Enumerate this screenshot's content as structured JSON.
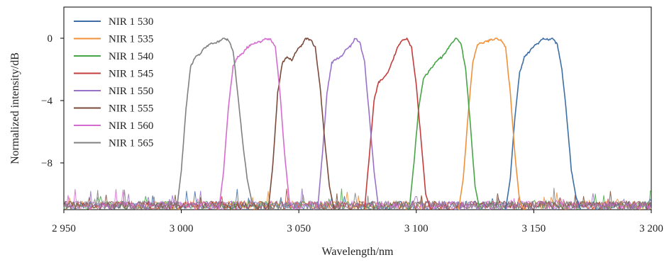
{
  "chart_data": {
    "type": "line",
    "title": "",
    "xlabel": "Wavelength/nm",
    "ylabel": "Normalized intensity/dB",
    "xlim": [
      2950,
      3200
    ],
    "ylim": [
      -11,
      2
    ],
    "x_ticks": [
      2950,
      3000,
      3050,
      3100,
      3150,
      3200
    ],
    "x_tick_labels": [
      "2 950",
      "3 000",
      "3 050",
      "3 100",
      "3 150",
      "3 200"
    ],
    "y_ticks": [
      0,
      -4,
      -8
    ],
    "y_tick_labels": [
      "0",
      "−4",
      "−8"
    ],
    "grid": false,
    "legend_position": "top-left",
    "noise_floor": -11,
    "series": [
      {
        "name": "NIR 1 530",
        "color": "#3d6fa6",
        "points": [
          [
            3138,
            -11
          ],
          [
            3140,
            -9
          ],
          [
            3142,
            -5
          ],
          [
            3144,
            -2.2
          ],
          [
            3146,
            -1.2
          ],
          [
            3148,
            -0.9
          ],
          [
            3150,
            -0.5
          ],
          [
            3152,
            -0.3
          ],
          [
            3154,
            0
          ],
          [
            3156,
            -0.1
          ],
          [
            3158,
            0
          ],
          [
            3160,
            -0.4
          ],
          [
            3162,
            -2
          ],
          [
            3164,
            -5
          ],
          [
            3166,
            -8.5
          ],
          [
            3168,
            -10.2
          ],
          [
            3170,
            -11
          ]
        ]
      },
      {
        "name": "NIR 1 535",
        "color": "#f0913a",
        "points": [
          [
            3118,
            -11
          ],
          [
            3120,
            -9
          ],
          [
            3122,
            -5
          ],
          [
            3124,
            -1.6
          ],
          [
            3126,
            -0.4
          ],
          [
            3128,
            -0.3
          ],
          [
            3130,
            -0.2
          ],
          [
            3132,
            -0.1
          ],
          [
            3134,
            0
          ],
          [
            3136,
            -0.1
          ],
          [
            3138,
            -0.6
          ],
          [
            3140,
            -3.5
          ],
          [
            3142,
            -7.5
          ],
          [
            3144,
            -10.5
          ],
          [
            3146,
            -11
          ]
        ]
      },
      {
        "name": "NIR 1 540",
        "color": "#47a447",
        "points": [
          [
            3097,
            -11
          ],
          [
            3099,
            -8
          ],
          [
            3101,
            -4.5
          ],
          [
            3103,
            -2.6
          ],
          [
            3105,
            -2.2
          ],
          [
            3107,
            -1.8
          ],
          [
            3109,
            -1.4
          ],
          [
            3111,
            -1.2
          ],
          [
            3113,
            -0.8
          ],
          [
            3115,
            -0.3
          ],
          [
            3117,
            0
          ],
          [
            3119,
            -0.3
          ],
          [
            3121,
            -2
          ],
          [
            3123,
            -5.5
          ],
          [
            3125,
            -9.5
          ],
          [
            3127,
            -11
          ]
        ]
      },
      {
        "name": "NIR 1 545",
        "color": "#c43c3c",
        "points": [
          [
            3078,
            -11
          ],
          [
            3080,
            -7.5
          ],
          [
            3082,
            -4
          ],
          [
            3084,
            -2.8
          ],
          [
            3086,
            -2.6
          ],
          [
            3088,
            -2.2
          ],
          [
            3090,
            -1.4
          ],
          [
            3092,
            -0.6
          ],
          [
            3094,
            -0.1
          ],
          [
            3096,
            0
          ],
          [
            3098,
            -0.6
          ],
          [
            3100,
            -3
          ],
          [
            3102,
            -6.5
          ],
          [
            3104,
            -10
          ],
          [
            3106,
            -11
          ]
        ]
      },
      {
        "name": "NIR 1 550",
        "color": "#9a71c9",
        "points": [
          [
            3058,
            -11
          ],
          [
            3060,
            -7.5
          ],
          [
            3062,
            -3.5
          ],
          [
            3064,
            -1.6
          ],
          [
            3066,
            -1.3
          ],
          [
            3068,
            -1.2
          ],
          [
            3070,
            -0.7
          ],
          [
            3072,
            -0.5
          ],
          [
            3074,
            0
          ],
          [
            3076,
            -0.3
          ],
          [
            3078,
            -1.5
          ],
          [
            3080,
            -5
          ],
          [
            3082,
            -8.5
          ],
          [
            3084,
            -11
          ]
        ]
      },
      {
        "name": "NIR 1 555",
        "color": "#7b4a3a",
        "points": [
          [
            3037,
            -11
          ],
          [
            3039,
            -8
          ],
          [
            3041,
            -3.5
          ],
          [
            3043,
            -1.6
          ],
          [
            3045,
            -1.2
          ],
          [
            3047,
            -1.4
          ],
          [
            3049,
            -0.8
          ],
          [
            3051,
            -0.5
          ],
          [
            3053,
            0
          ],
          [
            3055,
            -0.1
          ],
          [
            3057,
            -0.6
          ],
          [
            3059,
            -3
          ],
          [
            3061,
            -6.5
          ],
          [
            3063,
            -9.5
          ],
          [
            3065,
            -11
          ]
        ]
      },
      {
        "name": "NIR 1 560",
        "color": "#d46ccf",
        "points": [
          [
            3016,
            -11
          ],
          [
            3018,
            -8.5
          ],
          [
            3020,
            -4.5
          ],
          [
            3022,
            -1.8
          ],
          [
            3024,
            -1.2
          ],
          [
            3026,
            -1
          ],
          [
            3028,
            -0.6
          ],
          [
            3030,
            -0.4
          ],
          [
            3032,
            -0.3
          ],
          [
            3034,
            -0.2
          ],
          [
            3036,
            0
          ],
          [
            3038,
            -0.1
          ],
          [
            3040,
            -0.5
          ],
          [
            3042,
            -3.5
          ],
          [
            3044,
            -7.5
          ],
          [
            3046,
            -10.5
          ],
          [
            3048,
            -11
          ]
        ]
      },
      {
        "name": "NIR 1 565",
        "color": "#808080",
        "points": [
          [
            2998,
            -11
          ],
          [
            3000,
            -8.5
          ],
          [
            3002,
            -4.5
          ],
          [
            3004,
            -1.8
          ],
          [
            3006,
            -1.2
          ],
          [
            3008,
            -1
          ],
          [
            3010,
            -0.6
          ],
          [
            3012,
            -0.4
          ],
          [
            3014,
            -0.3
          ],
          [
            3016,
            -0.2
          ],
          [
            3018,
            0
          ],
          [
            3020,
            -0.1
          ],
          [
            3022,
            -0.8
          ],
          [
            3024,
            -3.5
          ],
          [
            3026,
            -6.5
          ],
          [
            3028,
            -9
          ],
          [
            3030,
            -10.5
          ],
          [
            3032,
            -11
          ]
        ]
      }
    ]
  }
}
